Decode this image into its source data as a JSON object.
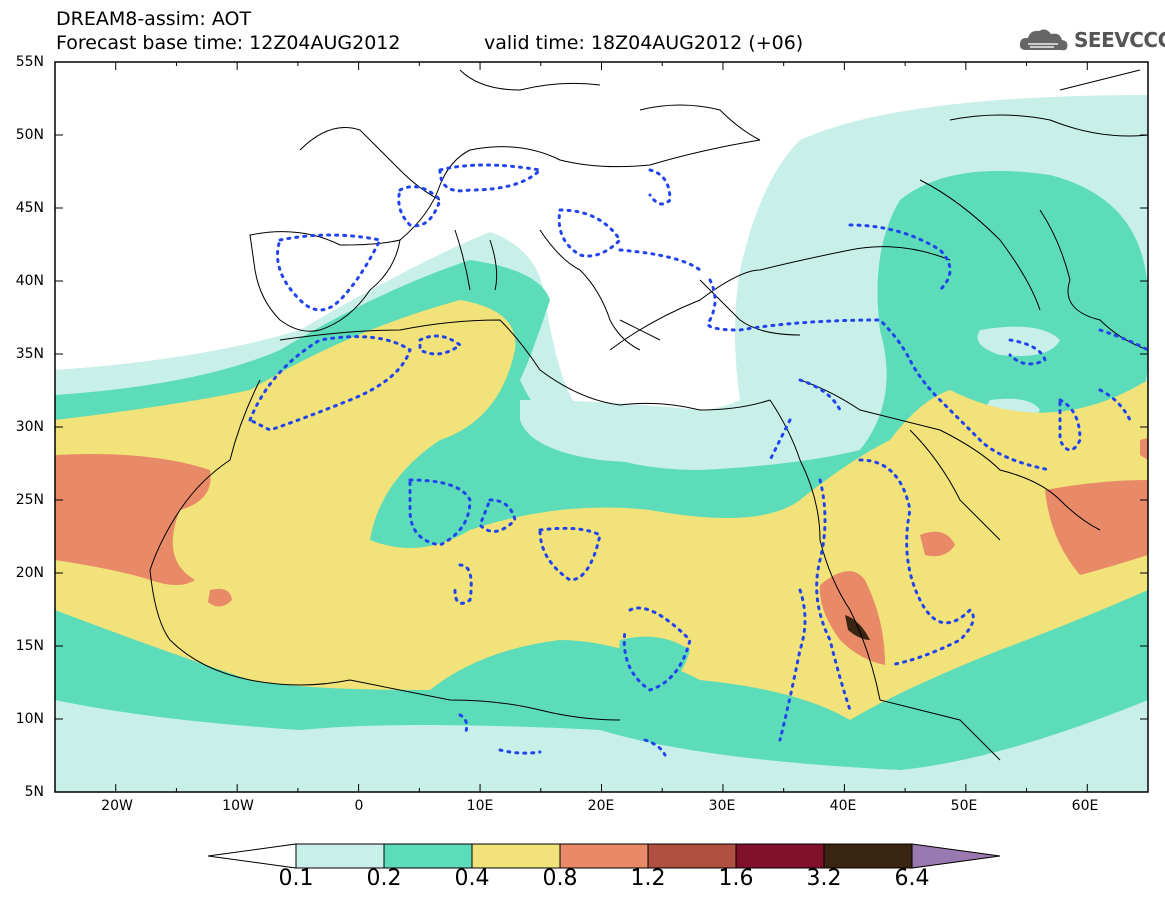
{
  "title": {
    "line1": "DREAM8-assim: AOT",
    "line2": "Forecast base time: 12Z04AUG2012",
    "valid": "valid time: 18Z04AUG2012 (+06)"
  },
  "logo": {
    "text": "SEEVCCC",
    "icon": "cloud-icon"
  },
  "axes": {
    "lat_labels": [
      "55N",
      "50N",
      "45N",
      "40N",
      "35N",
      "30N",
      "25N",
      "20N",
      "15N",
      "10N",
      "5N"
    ],
    "lon_labels": [
      "20W",
      "10W",
      "0",
      "10E",
      "20E",
      "30E",
      "40E",
      "50E",
      "60E"
    ],
    "lon_range": [
      -25,
      65
    ],
    "lat_range": [
      5,
      55
    ]
  },
  "colorbar": {
    "labels": [
      "0.1",
      "0.2",
      "0.4",
      "0.8",
      "1.2",
      "1.6",
      "3.2",
      "6.4"
    ],
    "colors": [
      "#c8f0e8",
      "#5cdcb8",
      "#f2e27a",
      "#e88a68",
      "#b05040",
      "#80102a",
      "#3a2412",
      "#9a78b0"
    ],
    "low_arrow_color": "#ffffff"
  },
  "legend_dotted_contour_color": "#2244ee"
}
